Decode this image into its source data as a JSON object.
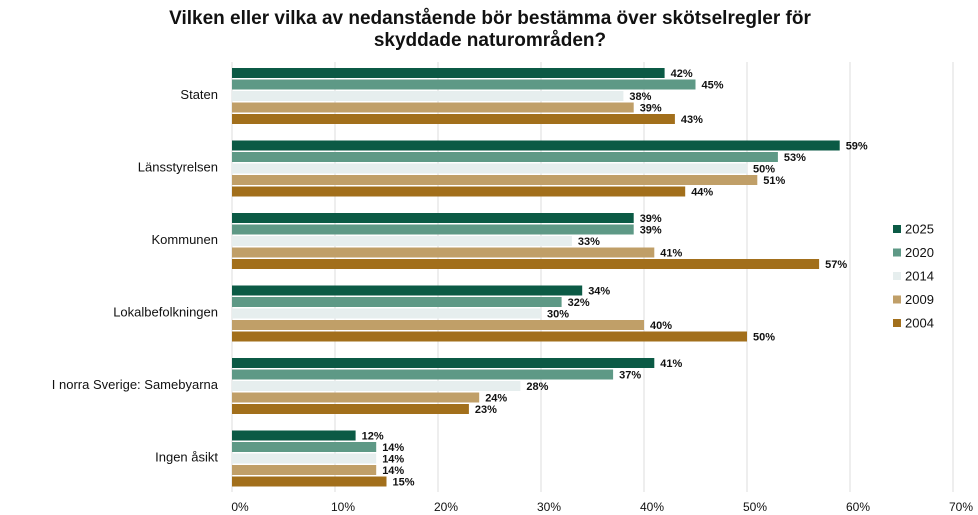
{
  "chart_data": {
    "type": "barh",
    "title": "Vilken eller vilka av nedanstående bör bestämma över skötselregler för skyddade naturområden?",
    "categories": [
      "Staten",
      "Länsstyrelsen",
      "Kommunen",
      "Lokalbefolkningen",
      "I norra Sverige: Samebyarna",
      "Ingen åsikt"
    ],
    "series": [
      {
        "name": "2025",
        "color": "#0b5a45",
        "values": [
          42,
          59,
          39,
          34,
          41,
          12
        ],
        "value_labels": [
          "42%",
          "59%",
          "39%",
          "34%",
          "41%",
          "12%"
        ]
      },
      {
        "name": "2020",
        "color": "#5e9986",
        "values": [
          45,
          53,
          39,
          32,
          37,
          14
        ],
        "value_labels": [
          "45%",
          "53%",
          "39%",
          "32%",
          "37%",
          "14%"
        ]
      },
      {
        "name": "2014",
        "color": "#e6eeee",
        "values": [
          38,
          50,
          33,
          30,
          28,
          14
        ],
        "value_labels": [
          "38%",
          "50%",
          "33%",
          "30%",
          "28%",
          "14%"
        ]
      },
      {
        "name": "2009",
        "color": "#c09f68",
        "values": [
          39,
          51,
          41,
          40,
          24,
          14
        ],
        "value_labels": [
          "39%",
          "51%",
          "41%",
          "40%",
          "24%",
          "14%"
        ]
      },
      {
        "name": "2004",
        "color": "#a26f1b",
        "values": [
          43,
          44,
          57,
          50,
          23,
          15
        ],
        "value_labels": [
          "43%",
          "44%",
          "57%",
          "50%",
          "23%",
          "15%"
        ]
      }
    ],
    "xlim": [
      0,
      70
    ],
    "xticks": [
      {
        "value": 0,
        "label": "0%"
      },
      {
        "value": 10,
        "label": "10%"
      },
      {
        "value": 20,
        "label": "20%"
      },
      {
        "value": 30,
        "label": "30%"
      },
      {
        "value": 40,
        "label": "40%"
      },
      {
        "value": 50,
        "label": "50%"
      },
      {
        "value": 60,
        "label": "60%"
      },
      {
        "value": 70,
        "label": "70%"
      }
    ],
    "grid": true,
    "legend": "right"
  }
}
